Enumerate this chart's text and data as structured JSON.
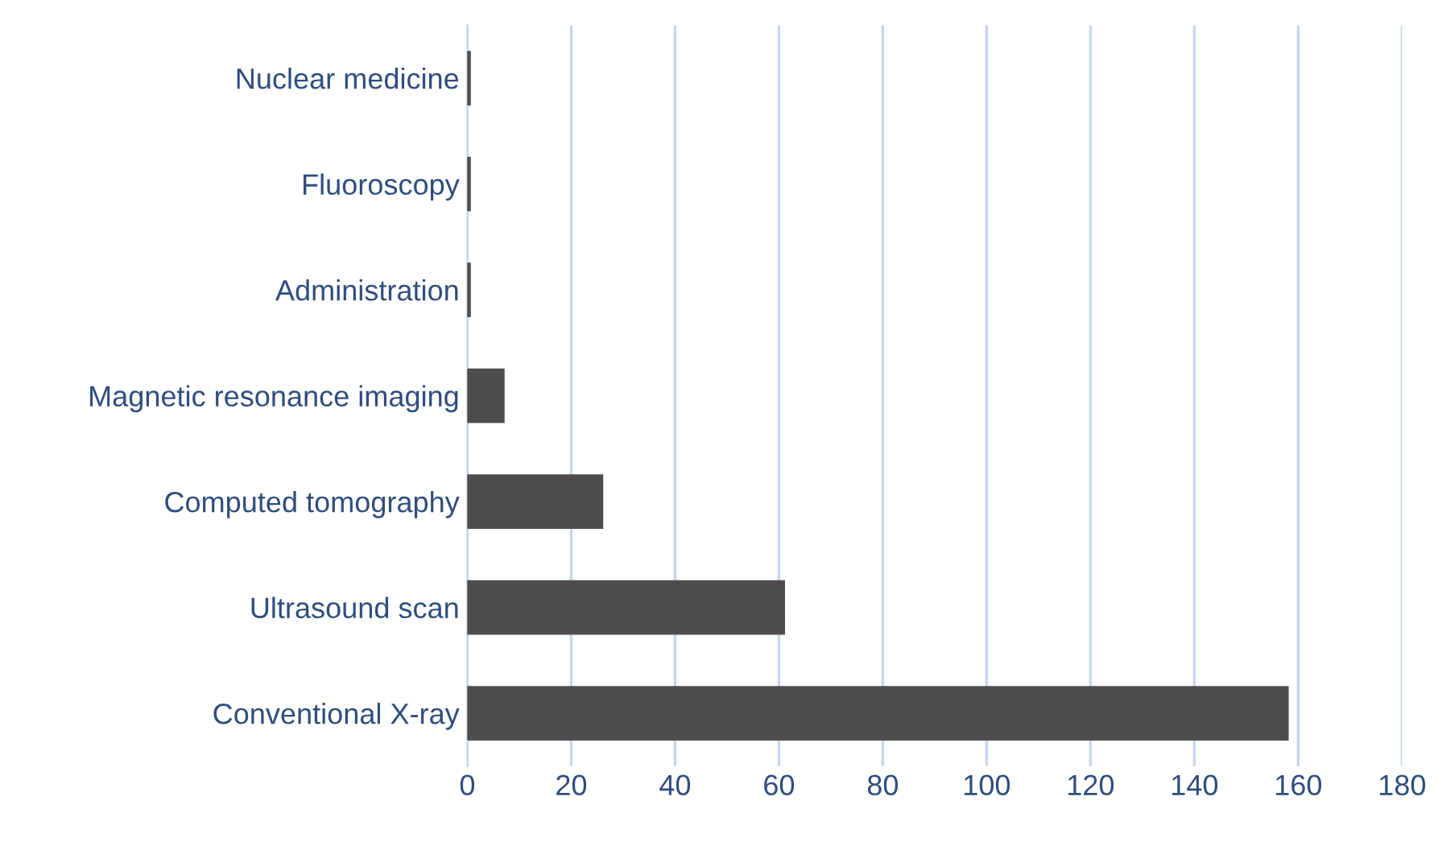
{
  "chart_data": {
    "type": "bar",
    "orientation": "horizontal",
    "categories": [
      "Nuclear medicine",
      "Fluoroscopy",
      "Administration",
      "Magnetic resonance imaging",
      "Computed tomography",
      "Ultrasound scan",
      "Conventional X-ray"
    ],
    "values": [
      0.5,
      0.5,
      0.5,
      7,
      26,
      61,
      158
    ],
    "color": "#4d4d4d",
    "xlim": [
      0,
      180
    ],
    "xticks": [
      0,
      20,
      40,
      60,
      80,
      100,
      120,
      140,
      160,
      180
    ],
    "grid": "x",
    "legend": false
  }
}
